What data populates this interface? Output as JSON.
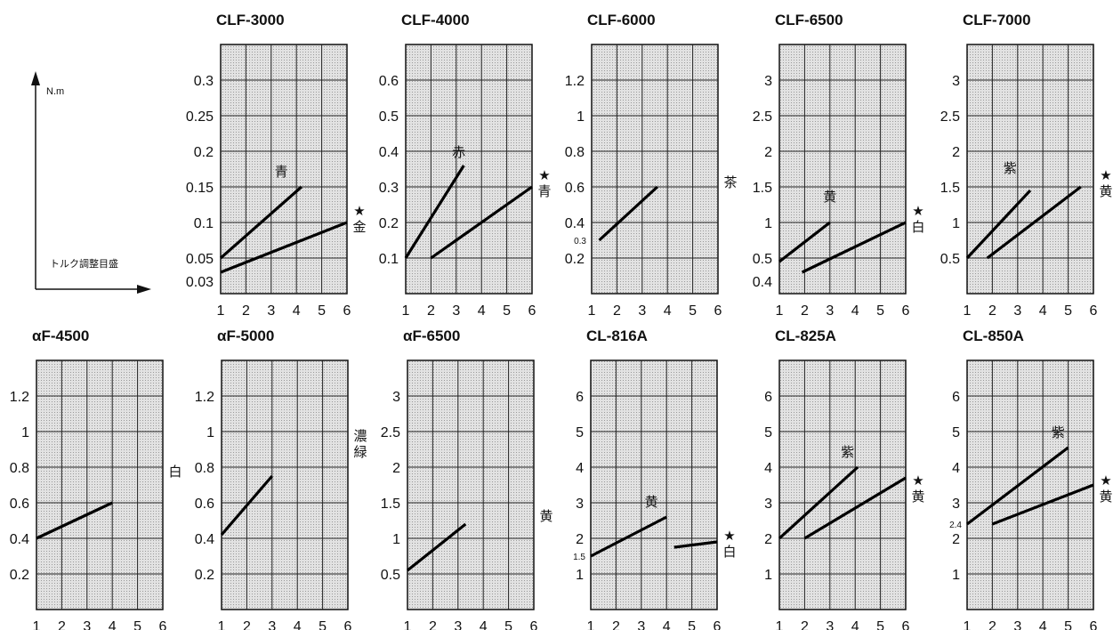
{
  "legend": {
    "y_unit": "N.m",
    "x_label": "トルク調整目盛"
  },
  "chart_data": [
    {
      "type": "line",
      "title": "CLF-3000",
      "yticks": [
        "0.3",
        "0.25",
        "0.2",
        "0.15",
        "0.1",
        "0.05"
      ],
      "extra_ytick": "0.03",
      "minor_note": "",
      "series_lines": [
        [
          1,
          0.05,
          4.2,
          0.15
        ],
        [
          1,
          0.03,
          6,
          0.1
        ]
      ],
      "labels": [
        {
          "text": "青",
          "x": 3.4,
          "y": 0.165,
          "star": false
        }
      ],
      "side": {
        "text": "金",
        "star": true,
        "y": 0.1
      },
      "xticks": [
        1,
        2,
        3,
        4,
        5,
        6
      ]
    },
    {
      "type": "line",
      "title": "CLF-4000",
      "yticks": [
        "0.6",
        "0.5",
        "0.4",
        "0.3",
        "0.2",
        "0.1"
      ],
      "extra_ytick": "",
      "minor_note": "",
      "series_lines": [
        [
          1,
          0.1,
          3.3,
          0.36
        ],
        [
          2,
          0.1,
          6,
          0.3
        ]
      ],
      "labels": [
        {
          "text": "赤",
          "x": 3.1,
          "y": 0.385,
          "star": false
        }
      ],
      "side": {
        "text": "青",
        "star": true,
        "y": 0.3
      },
      "xticks": [
        1,
        2,
        3,
        4,
        5,
        6
      ]
    },
    {
      "type": "line",
      "title": "CLF-6000",
      "yticks": [
        "1.2",
        "1",
        "0.8",
        "0.6",
        "0.4",
        "0.2"
      ],
      "extra_ytick": "",
      "minor_note": "0.3",
      "series_lines": [
        [
          1.3,
          0.3,
          3.6,
          0.6
        ]
      ],
      "labels": [],
      "side": {
        "text": "茶",
        "star": false,
        "y": 0.6
      },
      "xticks": [
        1,
        2,
        3,
        4,
        5,
        6
      ]
    },
    {
      "type": "line",
      "title": "CLF-6500",
      "yticks": [
        "3",
        "2.5",
        "2",
        "1.5",
        "1",
        "0.5"
      ],
      "extra_ytick": "0.4",
      "minor_note": "",
      "series_lines": [
        [
          1,
          0.45,
          3,
          1.0
        ],
        [
          1.9,
          0.3,
          6,
          1.0
        ]
      ],
      "labels": [
        {
          "text": "黄",
          "x": 3,
          "y": 1.3,
          "star": false
        }
      ],
      "side": {
        "text": "白",
        "star": true,
        "y": 1.0
      },
      "xticks": [
        1,
        2,
        3,
        4,
        5,
        6
      ]
    },
    {
      "type": "line",
      "title": "CLF-7000",
      "yticks": [
        "3",
        "2.5",
        "2",
        "1.5",
        "1",
        "0.5"
      ],
      "extra_ytick": "",
      "minor_note": "",
      "series_lines": [
        [
          1,
          0.5,
          3.5,
          1.45
        ],
        [
          1.8,
          0.5,
          5.5,
          1.5
        ]
      ],
      "labels": [
        {
          "text": "紫",
          "x": 2.7,
          "y": 1.7,
          "star": false
        }
      ],
      "side": {
        "text": "黄",
        "star": true,
        "y": 1.5
      },
      "xticks": [
        1,
        2,
        3,
        4,
        5,
        6
      ]
    },
    {
      "type": "line",
      "title": "αF-4500",
      "yticks": [
        "1.2",
        "1",
        "0.8",
        "0.6",
        "0.4",
        "0.2"
      ],
      "extra_ytick": "",
      "minor_note": "",
      "series_lines": [
        [
          1,
          0.4,
          4,
          0.6
        ]
      ],
      "labels": [],
      "side": {
        "text": "白",
        "star": false,
        "y": 0.75
      },
      "xticks": [
        1,
        2,
        3,
        4,
        5,
        6
      ]
    },
    {
      "type": "line",
      "title": "αF-5000",
      "yticks": [
        "1.2",
        "1",
        "0.8",
        "0.6",
        "0.4",
        "0.2"
      ],
      "extra_ytick": "",
      "minor_note": "",
      "series_lines": [
        [
          1,
          0.42,
          3,
          0.75
        ]
      ],
      "labels": [],
      "side": {
        "text": "濃緑",
        "star": false,
        "y": 0.95
      },
      "xticks": [
        1,
        2,
        3,
        4,
        5,
        6
      ]
    },
    {
      "type": "line",
      "title": "αF-6500",
      "yticks": [
        "3",
        "2.5",
        "2",
        "1.5",
        "1",
        "0.5"
      ],
      "extra_ytick": "",
      "minor_note": "",
      "series_lines": [
        [
          1,
          0.55,
          3.3,
          1.2
        ]
      ],
      "labels": [],
      "side": {
        "text": "黄",
        "star": false,
        "y": 1.25
      },
      "xticks": [
        1,
        2,
        3,
        4,
        5,
        6
      ]
    },
    {
      "type": "line",
      "title": "CL-816A",
      "yticks": [
        "6",
        "5",
        "4",
        "3",
        "2",
        "1"
      ],
      "extra_ytick": "",
      "minor_note": "1.5",
      "series_lines": [
        [
          1,
          1.5,
          4,
          2.6
        ],
        [
          4.3,
          1.75,
          6,
          1.9
        ]
      ],
      "labels": [
        {
          "text": "黄",
          "x": 3.4,
          "y": 2.9,
          "star": false
        }
      ],
      "side": {
        "text": "白",
        "star": true,
        "y": 1.75
      },
      "xticks": [
        1,
        2,
        3,
        4,
        5,
        6
      ]
    },
    {
      "type": "line",
      "title": "CL-825A",
      "yticks": [
        "6",
        "5",
        "4",
        "3",
        "2",
        "1"
      ],
      "extra_ytick": "",
      "minor_note": "",
      "series_lines": [
        [
          1,
          2.0,
          4.1,
          4.0
        ],
        [
          2,
          2.0,
          6,
          3.7
        ]
      ],
      "labels": [
        {
          "text": "紫",
          "x": 3.7,
          "y": 4.3,
          "star": false
        }
      ],
      "side": {
        "text": "黄",
        "star": true,
        "y": 3.3
      },
      "xticks": [
        1,
        2,
        3,
        4,
        5,
        6
      ]
    },
    {
      "type": "line",
      "title": "CL-850A",
      "yticks": [
        "6",
        "5",
        "4",
        "3",
        "2",
        "1"
      ],
      "extra_ytick": "",
      "minor_note": "2.4",
      "series_lines": [
        [
          1,
          2.4,
          5,
          4.55
        ],
        [
          2,
          2.4,
          6,
          3.5
        ]
      ],
      "labels": [
        {
          "text": "紫",
          "x": 4.6,
          "y": 4.85,
          "star": false
        }
      ],
      "side": {
        "text": "黄",
        "star": true,
        "y": 3.3
      },
      "xticks": [
        1,
        2,
        3,
        4,
        5,
        6
      ]
    }
  ]
}
